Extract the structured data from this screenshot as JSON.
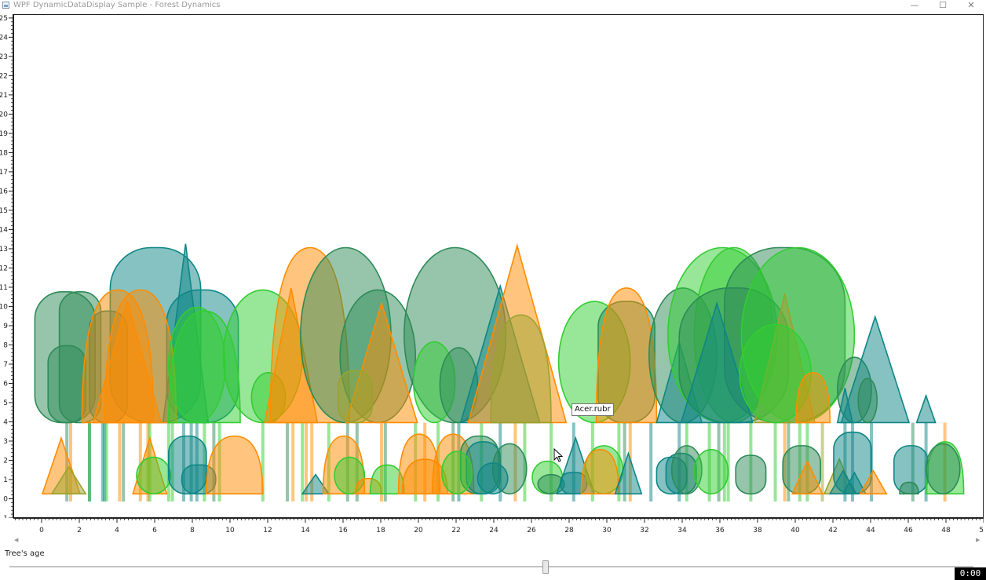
{
  "window": {
    "title": "WPF DynamicDataDisplay Sample - Forest Dynamics",
    "minimize": "—",
    "maximize": "☐",
    "close": "✕"
  },
  "chart_data": {
    "type": "scatter",
    "title": "",
    "xlabel": "",
    "ylabel": "",
    "xlim": [
      -1.5,
      50
    ],
    "ylim": [
      -1,
      25.2
    ],
    "x_ticks": [
      "0",
      "2",
      "4",
      "6",
      "8",
      "10",
      "12",
      "14",
      "16",
      "18",
      "20",
      "22",
      "24",
      "26",
      "28",
      "30",
      "32",
      "34",
      "36",
      "38",
      "40",
      "42",
      "44",
      "46",
      "48",
      "50"
    ],
    "y_ticks": [
      "-1",
      "0",
      "1",
      "2",
      "3",
      "4",
      "5",
      "6",
      "7",
      "8",
      "9",
      "10",
      "11",
      "12",
      "13",
      "14",
      "15",
      "16",
      "17",
      "18",
      "19",
      "20",
      "21",
      "22",
      "23",
      "24",
      "25"
    ],
    "colors": {
      "teal": "#0e8686",
      "sea_green": "#2e8b57",
      "orange": "#ff8c00",
      "lime": "#32cd32",
      "olive": "#9aa32f"
    },
    "trees": [
      {
        "shape": "round",
        "x": 1.2,
        "base": 4,
        "top": 10.8,
        "halfwidth": 1.6,
        "color": "sea_green"
      },
      {
        "shape": "round",
        "x": 2.0,
        "base": 4,
        "top": 10.8,
        "halfwidth": 1.1,
        "color": "sea_green"
      },
      {
        "shape": "round",
        "x": 1.3,
        "base": 4,
        "top": 8,
        "halfwidth": 1.0,
        "color": "sea_green"
      },
      {
        "shape": "round",
        "x": 6.0,
        "base": 4,
        "top": 13.1,
        "halfwidth": 2.4,
        "color": "teal"
      },
      {
        "shape": "round",
        "x": 3.5,
        "base": 4,
        "top": 9.8,
        "halfwidth": 1.0,
        "color": "teal"
      },
      {
        "shape": "cone",
        "x": 7.6,
        "base": 4,
        "top": 13.3,
        "halfwidth": 1.2,
        "color": "teal"
      },
      {
        "shape": "round",
        "x": 8.5,
        "base": 4,
        "top": 10.9,
        "halfwidth": 1.9,
        "color": "teal"
      },
      {
        "shape": "crown",
        "x": 4.0,
        "base": 4,
        "top": 10.9,
        "halfwidth": 1.9,
        "color": "orange"
      },
      {
        "shape": "crown",
        "x": 5.2,
        "base": 4,
        "top": 10.9,
        "halfwidth": 1.9,
        "color": "orange"
      },
      {
        "shape": "cone",
        "x": 4.5,
        "base": 4,
        "top": 10.3,
        "halfwidth": 1.8,
        "color": "orange"
      },
      {
        "shape": "ellipse",
        "x": 8.2,
        "base": 4,
        "top": 10.0,
        "halfwidth": 1.5,
        "color": "lime"
      },
      {
        "shape": "crown",
        "x": 8.6,
        "base": 4,
        "top": 9.8,
        "halfwidth": 1.9,
        "color": "lime"
      },
      {
        "shape": "ellipse",
        "x": 11.7,
        "base": 4,
        "top": 10.9,
        "halfwidth": 2.1,
        "color": "lime"
      },
      {
        "shape": "ellipse",
        "x": 12.0,
        "base": 4,
        "top": 6.6,
        "halfwidth": 0.9,
        "color": "lime"
      },
      {
        "shape": "crown",
        "x": 14.2,
        "base": 4,
        "top": 13.1,
        "halfwidth": 2.1,
        "color": "orange"
      },
      {
        "shape": "cone",
        "x": 13.2,
        "base": 4,
        "top": 11.0,
        "halfwidth": 1.4,
        "color": "orange"
      },
      {
        "shape": "ellipse",
        "x": 16.1,
        "base": 4,
        "top": 13.1,
        "halfwidth": 2.4,
        "color": "sea_green"
      },
      {
        "shape": "ellipse",
        "x": 17.8,
        "base": 4,
        "top": 10.9,
        "halfwidth": 2.0,
        "color": "sea_green"
      },
      {
        "shape": "cone",
        "x": 18.0,
        "base": 4,
        "top": 10.2,
        "halfwidth": 1.9,
        "color": "orange"
      },
      {
        "shape": "round",
        "x": 16.6,
        "base": 4,
        "top": 6.7,
        "halfwidth": 0.9,
        "color": "olive"
      },
      {
        "shape": "ellipse",
        "x": 21.9,
        "base": 4,
        "top": 13.1,
        "halfwidth": 2.7,
        "color": "sea_green"
      },
      {
        "shape": "ellipse",
        "x": 20.8,
        "base": 4,
        "top": 8.2,
        "halfwidth": 1.1,
        "color": "lime"
      },
      {
        "shape": "ellipse",
        "x": 22.1,
        "base": 4,
        "top": 7.9,
        "halfwidth": 1.0,
        "color": "sea_green"
      },
      {
        "shape": "cone",
        "x": 24.3,
        "base": 4,
        "top": 11.1,
        "halfwidth": 2.1,
        "color": "teal"
      },
      {
        "shape": "cone",
        "x": 25.2,
        "base": 4,
        "top": 13.2,
        "halfwidth": 2.6,
        "color": "orange"
      },
      {
        "shape": "crown",
        "x": 25.4,
        "base": 4,
        "top": 9.6,
        "halfwidth": 1.6,
        "color": "olive"
      },
      {
        "shape": "ellipse",
        "x": 29.3,
        "base": 4,
        "top": 10.3,
        "halfwidth": 1.9,
        "color": "lime"
      },
      {
        "shape": "round",
        "x": 31.0,
        "base": 4,
        "top": 10.3,
        "halfwidth": 1.5,
        "color": "sea_green"
      },
      {
        "shape": "crown",
        "x": 31.0,
        "base": 4,
        "top": 11.0,
        "halfwidth": 1.6,
        "color": "orange"
      },
      {
        "shape": "ellipse",
        "x": 34.0,
        "base": 4,
        "top": 11.0,
        "halfwidth": 1.8,
        "color": "sea_green"
      },
      {
        "shape": "cone",
        "x": 33.8,
        "base": 4,
        "top": 8.2,
        "halfwidth": 1.2,
        "color": "teal"
      },
      {
        "shape": "ellipse",
        "x": 36.1,
        "base": 4,
        "top": 13.1,
        "halfwidth": 2.9,
        "color": "lime"
      },
      {
        "shape": "ellipse",
        "x": 36.7,
        "base": 4,
        "top": 13.1,
        "halfwidth": 2.1,
        "color": "lime"
      },
      {
        "shape": "round",
        "x": 36.7,
        "base": 4,
        "top": 11.0,
        "halfwidth": 2.9,
        "color": "sea_green"
      },
      {
        "shape": "round",
        "x": 39.4,
        "base": 4,
        "top": 13.1,
        "halfwidth": 3.2,
        "color": "sea_green"
      },
      {
        "shape": "ellipse",
        "x": 40.1,
        "base": 4,
        "top": 13.1,
        "halfwidth": 3.0,
        "color": "lime"
      },
      {
        "shape": "cone",
        "x": 35.8,
        "base": 4,
        "top": 10.2,
        "halfwidth": 1.9,
        "color": "teal"
      },
      {
        "shape": "cone",
        "x": 39.4,
        "base": 4,
        "top": 10.7,
        "halfwidth": 1.6,
        "color": "olive"
      },
      {
        "shape": "ellipse",
        "x": 38.9,
        "base": 4,
        "top": 9.1,
        "halfwidth": 1.9,
        "color": "lime"
      },
      {
        "shape": "crown",
        "x": 40.9,
        "base": 4,
        "top": 6.6,
        "halfwidth": 0.9,
        "color": "orange"
      },
      {
        "shape": "ellipse",
        "x": 43.1,
        "base": 4,
        "top": 7.4,
        "halfwidth": 0.9,
        "color": "sea_green"
      },
      {
        "shape": "cone",
        "x": 44.2,
        "base": 4,
        "top": 9.5,
        "halfwidth": 1.8,
        "color": "teal"
      },
      {
        "shape": "cone",
        "x": 42.6,
        "base": 4,
        "top": 5.8,
        "halfwidth": 0.4,
        "color": "teal"
      },
      {
        "shape": "ellipse",
        "x": 43.8,
        "base": 4,
        "top": 6.3,
        "halfwidth": 0.5,
        "color": "sea_green"
      },
      {
        "shape": "cone",
        "x": 46.9,
        "base": 4,
        "top": 5.4,
        "halfwidth": 0.5,
        "color": "teal"
      },
      {
        "shape": "cone",
        "x": 1.0,
        "base": 0.3,
        "top": 3.2,
        "halfwidth": 1.0,
        "color": "orange"
      },
      {
        "shape": "cone",
        "x": 1.4,
        "base": 0.3,
        "top": 1.7,
        "halfwidth": 0.9,
        "color": "olive"
      },
      {
        "shape": "cone",
        "x": 5.7,
        "base": 0.3,
        "top": 3.2,
        "halfwidth": 0.9,
        "color": "orange"
      },
      {
        "shape": "ellipse",
        "x": 5.9,
        "base": 0.3,
        "top": 2.2,
        "halfwidth": 0.9,
        "color": "lime"
      },
      {
        "shape": "round",
        "x": 7.7,
        "base": 0.3,
        "top": 3.3,
        "halfwidth": 1.0,
        "color": "teal"
      },
      {
        "shape": "round",
        "x": 8.3,
        "base": 0.3,
        "top": 1.8,
        "halfwidth": 0.9,
        "color": "teal"
      },
      {
        "shape": "crown",
        "x": 10.2,
        "base": 0.3,
        "top": 3.3,
        "halfwidth": 1.5,
        "color": "orange"
      },
      {
        "shape": "cone",
        "x": 14.5,
        "base": 0.3,
        "top": 1.3,
        "halfwidth": 0.7,
        "color": "teal"
      },
      {
        "shape": "crown",
        "x": 16.0,
        "base": 0.3,
        "top": 3.3,
        "halfwidth": 1.1,
        "color": "orange"
      },
      {
        "shape": "ellipse",
        "x": 16.3,
        "base": 0.3,
        "top": 2.2,
        "halfwidth": 0.8,
        "color": "lime"
      },
      {
        "shape": "crown",
        "x": 17.3,
        "base": 0.3,
        "top": 1.1,
        "halfwidth": 0.7,
        "color": "orange"
      },
      {
        "shape": "crown",
        "x": 18.3,
        "base": 0.3,
        "top": 1.8,
        "halfwidth": 0.9,
        "color": "lime"
      },
      {
        "shape": "crown",
        "x": 20.0,
        "base": 0.3,
        "top": 3.4,
        "halfwidth": 1.1,
        "color": "orange"
      },
      {
        "shape": "crown",
        "x": 20.3,
        "base": 0.3,
        "top": 2.1,
        "halfwidth": 1.2,
        "color": "orange"
      },
      {
        "shape": "crown",
        "x": 21.8,
        "base": 0.3,
        "top": 3.4,
        "halfwidth": 1.1,
        "color": "orange"
      },
      {
        "shape": "round",
        "x": 23.2,
        "base": 0.3,
        "top": 3.3,
        "halfwidth": 1.0,
        "color": "sea_green"
      },
      {
        "shape": "round",
        "x": 23.4,
        "base": 0.3,
        "top": 3.0,
        "halfwidth": 0.9,
        "color": "teal"
      },
      {
        "shape": "ellipse",
        "x": 24.8,
        "base": 0.3,
        "top": 2.9,
        "halfwidth": 0.9,
        "color": "sea_green"
      },
      {
        "shape": "ellipse",
        "x": 23.9,
        "base": 0.3,
        "top": 1.9,
        "halfwidth": 0.8,
        "color": "teal"
      },
      {
        "shape": "ellipse",
        "x": 22.0,
        "base": 0.3,
        "top": 2.5,
        "halfwidth": 0.8,
        "color": "lime"
      },
      {
        "shape": "ellipse",
        "x": 26.8,
        "base": 0.3,
        "top": 2.0,
        "halfwidth": 0.8,
        "color": "lime"
      },
      {
        "shape": "ellipse",
        "x": 27.0,
        "base": 0.3,
        "top": 1.3,
        "halfwidth": 0.7,
        "color": "sea_green"
      },
      {
        "shape": "cone",
        "x": 28.3,
        "base": 0.3,
        "top": 3.2,
        "halfwidth": 1.0,
        "color": "teal"
      },
      {
        "shape": "round",
        "x": 28.2,
        "base": 0.3,
        "top": 1.4,
        "halfwidth": 0.7,
        "color": "teal"
      },
      {
        "shape": "ellipse",
        "x": 29.8,
        "base": 0.3,
        "top": 2.8,
        "halfwidth": 1.0,
        "color": "lime"
      },
      {
        "shape": "crown",
        "x": 29.6,
        "base": 0.3,
        "top": 2.6,
        "halfwidth": 1.0,
        "color": "orange"
      },
      {
        "shape": "cone",
        "x": 31.1,
        "base": 0.3,
        "top": 2.4,
        "halfwidth": 0.7,
        "color": "teal"
      },
      {
        "shape": "round",
        "x": 33.4,
        "base": 0.3,
        "top": 2.2,
        "halfwidth": 0.8,
        "color": "teal"
      },
      {
        "shape": "round",
        "x": 33.9,
        "base": 0.3,
        "top": 2.4,
        "halfwidth": 0.8,
        "color": "teal"
      },
      {
        "shape": "ellipse",
        "x": 34.2,
        "base": 0.3,
        "top": 2.8,
        "halfwidth": 0.8,
        "color": "sea_green"
      },
      {
        "shape": "ellipse",
        "x": 35.5,
        "base": 0.3,
        "top": 2.6,
        "halfwidth": 0.9,
        "color": "lime"
      },
      {
        "shape": "round",
        "x": 37.6,
        "base": 0.3,
        "top": 2.3,
        "halfwidth": 0.8,
        "color": "sea_green"
      },
      {
        "shape": "round",
        "x": 40.3,
        "base": 0.3,
        "top": 2.8,
        "halfwidth": 1.0,
        "color": "sea_green"
      },
      {
        "shape": "cone",
        "x": 40.6,
        "base": 0.3,
        "top": 2.0,
        "halfwidth": 0.8,
        "color": "orange"
      },
      {
        "shape": "cone",
        "x": 42.3,
        "base": 0.3,
        "top": 2.1,
        "halfwidth": 0.8,
        "color": "olive"
      },
      {
        "shape": "round",
        "x": 43.0,
        "base": 0.3,
        "top": 3.5,
        "halfwidth": 1.0,
        "color": "teal"
      },
      {
        "shape": "cone",
        "x": 42.5,
        "base": 0.3,
        "top": 1.5,
        "halfwidth": 0.7,
        "color": "teal"
      },
      {
        "shape": "cone",
        "x": 43.1,
        "base": 0.3,
        "top": 1.4,
        "halfwidth": 0.6,
        "color": "teal"
      },
      {
        "shape": "cone",
        "x": 44.1,
        "base": 0.3,
        "top": 1.5,
        "halfwidth": 0.7,
        "color": "orange"
      },
      {
        "shape": "round",
        "x": 46.1,
        "base": 0.3,
        "top": 2.8,
        "halfwidth": 0.9,
        "color": "teal"
      },
      {
        "shape": "crown",
        "x": 46.0,
        "base": 0.3,
        "top": 0.9,
        "halfwidth": 0.5,
        "color": "sea_green"
      },
      {
        "shape": "crown",
        "x": 47.9,
        "base": 0.3,
        "top": 3.0,
        "halfwidth": 1.0,
        "color": "lime"
      },
      {
        "shape": "ellipse",
        "x": 47.8,
        "base": 0.3,
        "top": 2.9,
        "halfwidth": 0.9,
        "color": "sea_green"
      }
    ],
    "stems": [
      {
        "x": 1.3,
        "color": "sea_green"
      },
      {
        "x": 1.5,
        "color": "orange"
      },
      {
        "x": 2.5,
        "color": "lime"
      },
      {
        "x": 2.5,
        "color": "sea_green"
      },
      {
        "x": 3.2,
        "color": "teal"
      },
      {
        "x": 3.3,
        "color": "teal"
      },
      {
        "x": 3.4,
        "color": "lime"
      },
      {
        "x": 4.1,
        "color": "orange"
      },
      {
        "x": 4.3,
        "color": "sea_green"
      },
      {
        "x": 5.2,
        "color": "orange"
      },
      {
        "x": 5.6,
        "color": "orange"
      },
      {
        "x": 5.7,
        "color": "lime"
      },
      {
        "x": 6.7,
        "color": "lime"
      },
      {
        "x": 6.9,
        "color": "lime"
      },
      {
        "x": 7.5,
        "color": "teal"
      },
      {
        "x": 7.9,
        "color": "teal"
      },
      {
        "x": 8.2,
        "color": "teal"
      },
      {
        "x": 8.6,
        "color": "lime"
      },
      {
        "x": 9.1,
        "color": "sea_green"
      },
      {
        "x": 9.4,
        "color": "lime"
      },
      {
        "x": 11.7,
        "color": "lime"
      },
      {
        "x": 13.0,
        "color": "sea_green"
      },
      {
        "x": 13.3,
        "color": "orange"
      },
      {
        "x": 13.8,
        "color": "lime"
      },
      {
        "x": 14.0,
        "color": "orange"
      },
      {
        "x": 14.3,
        "color": "orange"
      },
      {
        "x": 15.2,
        "color": "lime"
      },
      {
        "x": 16.2,
        "color": "sea_green"
      },
      {
        "x": 16.7,
        "color": "sea_green"
      },
      {
        "x": 18.0,
        "color": "orange"
      },
      {
        "x": 18.2,
        "color": "sea_green"
      },
      {
        "x": 19.8,
        "color": "lime"
      },
      {
        "x": 20.3,
        "color": "orange"
      },
      {
        "x": 21.0,
        "color": "lime"
      },
      {
        "x": 21.8,
        "color": "sea_green"
      },
      {
        "x": 22.1,
        "color": "teal"
      },
      {
        "x": 23.3,
        "color": "lime"
      },
      {
        "x": 24.3,
        "color": "teal"
      },
      {
        "x": 25.1,
        "color": "orange"
      },
      {
        "x": 25.6,
        "color": "lime"
      },
      {
        "x": 27.0,
        "color": "lime"
      },
      {
        "x": 28.2,
        "color": "teal"
      },
      {
        "x": 29.2,
        "color": "lime"
      },
      {
        "x": 30.6,
        "color": "lime"
      },
      {
        "x": 30.9,
        "color": "sea_green"
      },
      {
        "x": 31.2,
        "color": "orange"
      },
      {
        "x": 32.3,
        "color": "teal"
      },
      {
        "x": 33.8,
        "color": "teal"
      },
      {
        "x": 34.2,
        "color": "lime"
      },
      {
        "x": 35.4,
        "color": "lime"
      },
      {
        "x": 35.9,
        "color": "sea_green"
      },
      {
        "x": 36.2,
        "color": "lime"
      },
      {
        "x": 36.4,
        "color": "lime"
      },
      {
        "x": 37.6,
        "color": "lime"
      },
      {
        "x": 38.9,
        "color": "lime"
      },
      {
        "x": 39.4,
        "color": "orange"
      },
      {
        "x": 39.6,
        "color": "sea_green"
      },
      {
        "x": 40.2,
        "color": "lime"
      },
      {
        "x": 40.6,
        "color": "lime"
      },
      {
        "x": 41.4,
        "color": "olive"
      },
      {
        "x": 42.6,
        "color": "teal"
      },
      {
        "x": 43.0,
        "color": "teal"
      },
      {
        "x": 44.0,
        "color": "teal"
      },
      {
        "x": 46.2,
        "color": "sea_green"
      },
      {
        "x": 46.9,
        "color": "teal"
      },
      {
        "x": 47.9,
        "color": "orange"
      }
    ]
  },
  "tooltip": "Acer.rubr",
  "slider": {
    "label": "Tree's age",
    "value": 0.556
  },
  "record_badge": "0:00"
}
